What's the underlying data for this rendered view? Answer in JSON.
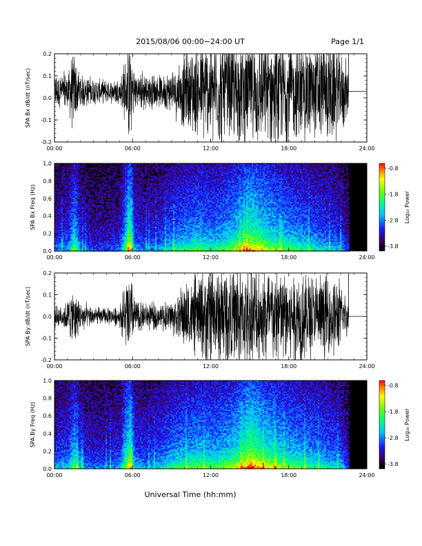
{
  "header": {
    "title": "2015/08/06  00:00−24:00 UT",
    "page": "Page 1/1"
  },
  "footer": {
    "xlabel": "Universal Time (hh:mm)"
  },
  "time_ticks": [
    "00:00",
    "06:00",
    "12:00",
    "18:00",
    "24:00"
  ],
  "colorbar": {
    "label": "Log₁₀ Power",
    "ticks": [
      "-0.8",
      "-1.8",
      "-2.8",
      "-3.8"
    ],
    "range": [
      -3.8,
      -0.8
    ]
  },
  "chart_data": [
    {
      "type": "line",
      "ylabel": "SPA Bx dB/dt (nT/sec)",
      "xlim": [
        0,
        24
      ],
      "ylim": [
        -0.2,
        0.2
      ],
      "yticks": [
        "0.2",
        "0.1",
        "0.0",
        "-0.1",
        "-0.2"
      ],
      "x_unit": "hours UT",
      "data_end_hour": 22.6,
      "envelope": {
        "hour": [
          0,
          1,
          1.5,
          2,
          3,
          4,
          5,
          5.8,
          6.1,
          7,
          8,
          9,
          10,
          11,
          12,
          13,
          14,
          15,
          16,
          17,
          18,
          19,
          20,
          21,
          22,
          22.6
        ],
        "amplitude": [
          0.06,
          0.08,
          0.15,
          0.07,
          0.05,
          0.04,
          0.05,
          0.2,
          0.09,
          0.07,
          0.06,
          0.08,
          0.14,
          0.18,
          0.2,
          0.2,
          0.2,
          0.2,
          0.2,
          0.2,
          0.2,
          0.2,
          0.2,
          0.2,
          0.18,
          0.08
        ]
      },
      "baseline": 0.03
    },
    {
      "type": "heatmap",
      "ylabel": "SPA Bx Freq (Hz)",
      "xlim": [
        0,
        24
      ],
      "ylim": [
        0,
        1.0
      ],
      "yticks": [
        "1.0",
        "0.8",
        "0.6",
        "0.4",
        "0.2",
        "0.0"
      ],
      "data_end_hour": 22.6,
      "activity": {
        "hour": [
          0,
          1,
          1.5,
          2,
          3,
          4,
          5,
          5.8,
          6.1,
          7,
          8,
          9,
          10,
          11,
          12,
          13,
          14,
          15,
          16,
          17,
          18,
          19,
          20,
          21,
          22,
          22.6
        ],
        "level": [
          0.3,
          0.35,
          0.6,
          0.3,
          0.25,
          0.25,
          0.3,
          0.85,
          0.35,
          0.3,
          0.35,
          0.45,
          0.5,
          0.55,
          0.5,
          0.55,
          0.65,
          0.8,
          0.7,
          0.6,
          0.55,
          0.5,
          0.45,
          0.4,
          0.35,
          0.2
        ]
      }
    },
    {
      "type": "line",
      "ylabel": "SPA By dB/dt (nT/sec)",
      "xlim": [
        0,
        24
      ],
      "ylim": [
        -0.2,
        0.2
      ],
      "yticks": [
        "0.2",
        "0.1",
        "0.0",
        "-0.1",
        "-0.2"
      ],
      "x_unit": "hours UT",
      "data_end_hour": 22.6,
      "envelope": {
        "hour": [
          0,
          1,
          1.5,
          2,
          3,
          4,
          5,
          5.8,
          6.1,
          7,
          8,
          9,
          10,
          11,
          12,
          13,
          14,
          15,
          16,
          17,
          18,
          19,
          20,
          21,
          22,
          22.6
        ],
        "amplitude": [
          0.04,
          0.06,
          0.12,
          0.06,
          0.04,
          0.03,
          0.04,
          0.2,
          0.08,
          0.05,
          0.05,
          0.07,
          0.12,
          0.16,
          0.2,
          0.2,
          0.2,
          0.2,
          0.2,
          0.2,
          0.2,
          0.18,
          0.16,
          0.16,
          0.14,
          0.06
        ]
      },
      "baseline": 0.0
    },
    {
      "type": "heatmap",
      "ylabel": "SPA By Freq (Hz)",
      "xlim": [
        0,
        24
      ],
      "ylim": [
        0,
        1.0
      ],
      "yticks": [
        "1.0",
        "0.8",
        "0.6",
        "0.4",
        "0.2",
        "0.0"
      ],
      "data_end_hour": 22.6,
      "activity": {
        "hour": [
          0,
          1,
          1.5,
          2,
          3,
          4,
          5,
          5.8,
          6.1,
          7,
          8,
          9,
          10,
          11,
          12,
          13,
          14,
          15,
          16,
          17,
          18,
          19,
          20,
          21,
          22,
          22.6
        ],
        "level": [
          0.35,
          0.4,
          0.6,
          0.35,
          0.3,
          0.3,
          0.35,
          0.85,
          0.4,
          0.35,
          0.4,
          0.5,
          0.55,
          0.6,
          0.55,
          0.6,
          0.7,
          0.9,
          0.75,
          0.65,
          0.6,
          0.55,
          0.5,
          0.45,
          0.4,
          0.2
        ]
      }
    }
  ]
}
